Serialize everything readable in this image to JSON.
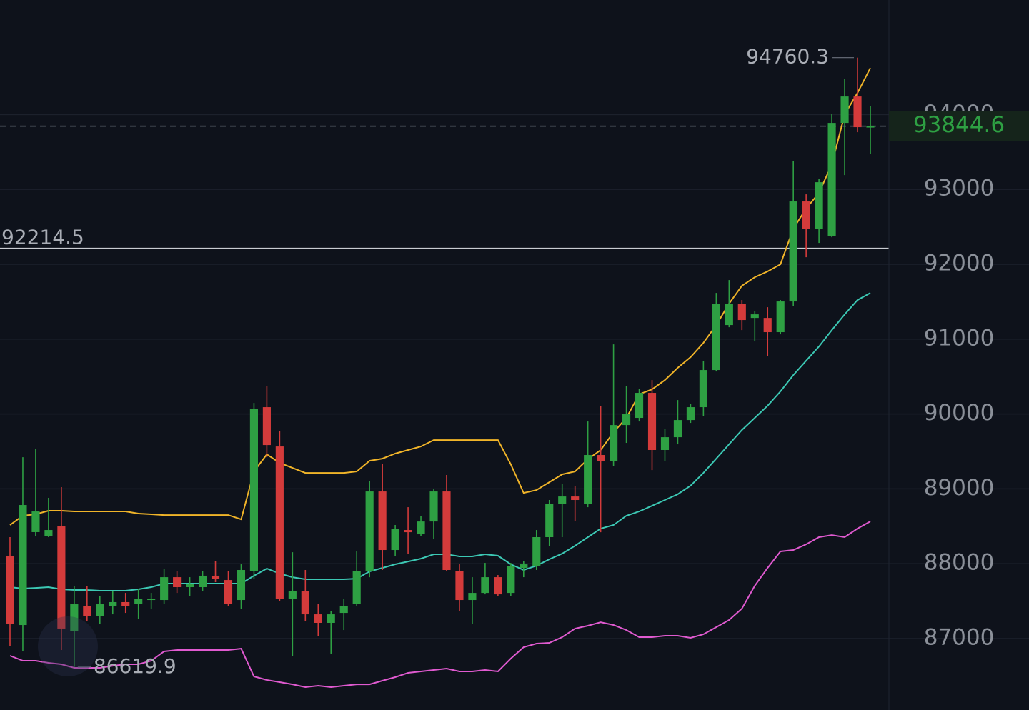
{
  "chart_data": {
    "type": "candlestick",
    "up_color": "#2ea043",
    "down_color": "#d43b3b",
    "ylim": [
      86046,
      95530
    ],
    "yticks": [
      87000,
      88000,
      89000,
      90000,
      91000,
      92000,
      93000,
      94000
    ],
    "grid": true,
    "candles": {
      "open": [
        88107,
        87181,
        88422,
        88374,
        88498,
        87105,
        87439,
        87305,
        87439,
        87487,
        87467,
        87515,
        87515,
        87820,
        87687,
        87687,
        87840,
        87782,
        87515,
        87897,
        90091,
        89566,
        87534,
        87630,
        87324,
        87210,
        87343,
        87467,
        87897,
        88965,
        88183,
        88450,
        88393,
        88564,
        88965,
        87897,
        87515,
        87610,
        87820,
        87610,
        87944,
        87973,
        88355,
        88803,
        88898,
        88803,
        89452,
        89375,
        89852,
        89948,
        90282,
        89519,
        89690,
        89919,
        90091,
        90587,
        91188,
        91474,
        91283,
        91283,
        91093,
        91503,
        92839,
        92476,
        92380,
        93888,
        94241,
        93826
      ],
      "high": [
        88355,
        89423,
        89537,
        88880,
        89023,
        87706,
        87706,
        87563,
        87630,
        87610,
        87658,
        87610,
        87935,
        87897,
        87820,
        87897,
        88040,
        87897,
        87992,
        90148,
        90377,
        89776,
        88154,
        87916,
        87467,
        87372,
        87534,
        88164,
        89108,
        89328,
        88517,
        88755,
        88641,
        88994,
        89185,
        87992,
        87820,
        88011,
        87849,
        88011,
        88040,
        88450,
        88851,
        89061,
        89042,
        89900,
        90110,
        90930,
        90377,
        90330,
        90453,
        89805,
        90186,
        90139,
        90711,
        91617,
        91789,
        91522,
        91379,
        91426,
        91522,
        93382,
        92934,
        93144,
        94003,
        94479,
        94760.3,
        94117
      ],
      "low": [
        86895,
        86828,
        88374,
        88355,
        86847,
        86619.9,
        87229,
        87200,
        87324,
        87343,
        87267,
        87391,
        87458,
        87610,
        87563,
        87630,
        87754,
        87439,
        87400,
        87801,
        89423,
        87496,
        86771,
        87229,
        87038,
        86800,
        87114,
        87439,
        87820,
        87916,
        88107,
        88135,
        88374,
        88326,
        87897,
        87363,
        87200,
        87591,
        87563,
        87563,
        87820,
        87916,
        88231,
        88355,
        88565,
        88755,
        88421,
        89309,
        89614,
        89900,
        89251,
        89375,
        89595,
        89881,
        89976,
        90568,
        91159,
        91121,
        90969,
        90778,
        91064,
        91445,
        92094,
        92285,
        92361,
        93191,
        93764,
        93478
      ],
      "close": [
        87200,
        88784,
        88698,
        88450,
        87134,
        87458,
        87305,
        87458,
        87487,
        87439,
        87534,
        87534,
        87820,
        87687,
        87735,
        87840,
        87801,
        87467,
        87916,
        90072,
        89585,
        87534,
        87630,
        87324,
        87210,
        87324,
        87439,
        87897,
        88965,
        88183,
        88469,
        88421,
        88564,
        88965,
        87916,
        87515,
        87610,
        87820,
        87591,
        87964,
        87992,
        88355,
        88803,
        88898,
        88851,
        89452,
        89375,
        89852,
        89996,
        90282,
        89519,
        89690,
        89919,
        90091,
        90587,
        91474,
        91474,
        91255,
        91331,
        91093,
        91503,
        92839,
        92476,
        93096,
        93888,
        94241,
        93831,
        93844.6
      ]
    },
    "lines": [
      {
        "color": "#f0b429",
        "values": [
          88517,
          88641,
          88660,
          88708,
          88708,
          88698,
          88698,
          88698,
          88698,
          88698,
          88670,
          88660,
          88650,
          88650,
          88650,
          88650,
          88650,
          88650,
          88593,
          89232,
          89461,
          89347,
          89280,
          89213,
          89213,
          89213,
          89213,
          89232,
          89375,
          89404,
          89471,
          89519,
          89566,
          89652,
          89652,
          89652,
          89652,
          89652,
          89652,
          89328,
          88946,
          88984,
          89089,
          89194,
          89232,
          89395,
          89519,
          89757,
          89948,
          90263,
          90329,
          90453,
          90616,
          90759,
          90950,
          91188,
          91474,
          91713,
          91827,
          91904,
          91999,
          92476,
          92743,
          92953,
          93335,
          94002,
          94289,
          94622
        ]
      },
      {
        "color": "#3cc8b4",
        "values": [
          87687,
          87668,
          87677,
          87687,
          87658,
          87649,
          87649,
          87639,
          87639,
          87639,
          87658,
          87687,
          87735,
          87735,
          87735,
          87735,
          87735,
          87735,
          87735,
          87840,
          87935,
          87868,
          87820,
          87792,
          87792,
          87792,
          87792,
          87801,
          87897,
          87944,
          87992,
          88030,
          88068,
          88126,
          88126,
          88097,
          88097,
          88126,
          88107,
          87992,
          87916,
          87973,
          88059,
          88135,
          88240,
          88355,
          88469,
          88517,
          88641,
          88698,
          88774,
          88851,
          88927,
          89042,
          89213,
          89404,
          89595,
          89786,
          89948,
          90110,
          90301,
          90520,
          90711,
          90902,
          91121,
          91331,
          91522,
          91617
        ]
      },
      {
        "color": "#e05ad0",
        "values": [
          86771,
          86704,
          86704,
          86676,
          86657,
          86609,
          86609,
          86609,
          86637,
          86657,
          86657,
          86704,
          86828,
          86847,
          86847,
          86847,
          86847,
          86847,
          86866,
          86494,
          86447,
          86418,
          86389,
          86351,
          86370,
          86351,
          86370,
          86389,
          86389,
          86437,
          86485,
          86542,
          86561,
          86580,
          86599,
          86561,
          86561,
          86580,
          86561,
          86733,
          86886,
          86933,
          86943,
          87019,
          87134,
          87172,
          87219,
          87181,
          87114,
          87019,
          87019,
          87038,
          87038,
          87010,
          87057,
          87153,
          87248,
          87401,
          87706,
          87944,
          88164,
          88183,
          88259,
          88355,
          88383,
          88355,
          88469,
          88565
        ]
      }
    ],
    "price_line": 92214.5
  }
}
